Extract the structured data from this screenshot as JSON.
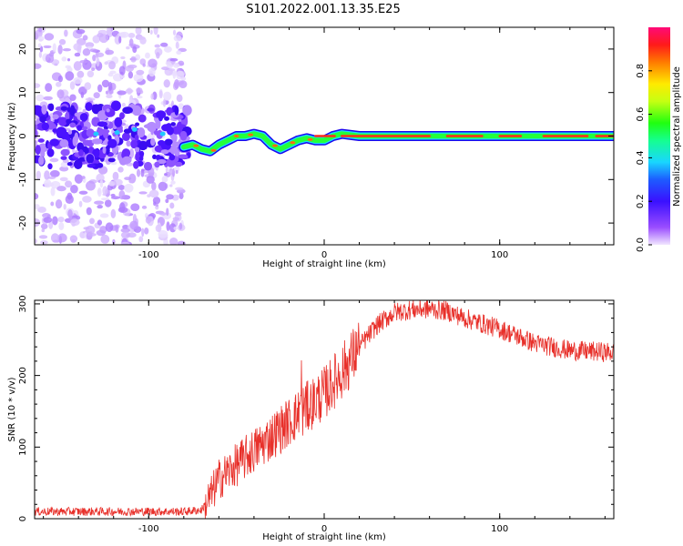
{
  "title": "S101.2022.001.13.35.E25",
  "chart_data": [
    {
      "type": "heatmap",
      "description_label": "spectrogram",
      "xlabel": "Height of straight line (km)",
      "ylabel": "Frequency (Hz)",
      "xlim": [
        -165,
        165
      ],
      "ylim": [
        -25,
        25
      ],
      "xticks": [
        -100,
        0,
        100
      ],
      "yticks": [
        -20,
        -10,
        0,
        10,
        20
      ],
      "colorbar": {
        "label": "Normalized spectral amplitude",
        "range": [
          0.0,
          1.0
        ],
        "ticks": [
          0.0,
          0.2,
          0.4,
          0.6,
          0.8
        ],
        "tick_labels": [
          "0.0",
          "0.2",
          "0.4",
          "0.6",
          "0.8"
        ]
      },
      "ridge": {
        "x": [
          -80,
          -75,
          -70,
          -65,
          -60,
          -55,
          -50,
          -45,
          -40,
          -35,
          -30,
          -25,
          -20,
          -15,
          -10,
          -5,
          0,
          5,
          10,
          20,
          40,
          80,
          120,
          165
        ],
        "frequency": [
          -2.5,
          -2,
          -3,
          -3.5,
          -2,
          -1,
          0,
          0,
          0.5,
          0,
          -2,
          -3,
          -2,
          -1,
          -0.5,
          -1,
          -1,
          0,
          0.5,
          0,
          0,
          0,
          0,
          0
        ]
      }
    },
    {
      "type": "line",
      "xlabel": "Height of straight line (km)",
      "ylabel": "SNR (10 * v/v)",
      "xlim": [
        -165,
        165
      ],
      "ylim": [
        0,
        305
      ],
      "xticks": [
        -100,
        0,
        100
      ],
      "yticks": [
        0,
        100,
        200,
        300
      ],
      "color": "#e8302a",
      "series": [
        {
          "name": "SNR",
          "x": [
            -165,
            -140,
            -120,
            -100,
            -80,
            -70,
            -65,
            -60,
            -50,
            -40,
            -30,
            -20,
            -10,
            0,
            10,
            20,
            30,
            40,
            50,
            60,
            70,
            80,
            100,
            120,
            140,
            165
          ],
          "values": [
            10,
            10,
            10,
            10,
            10,
            12,
            30,
            55,
            75,
            95,
            115,
            135,
            155,
            175,
            205,
            240,
            270,
            288,
            292,
            293,
            290,
            280,
            265,
            245,
            235,
            232
          ]
        }
      ]
    }
  ]
}
